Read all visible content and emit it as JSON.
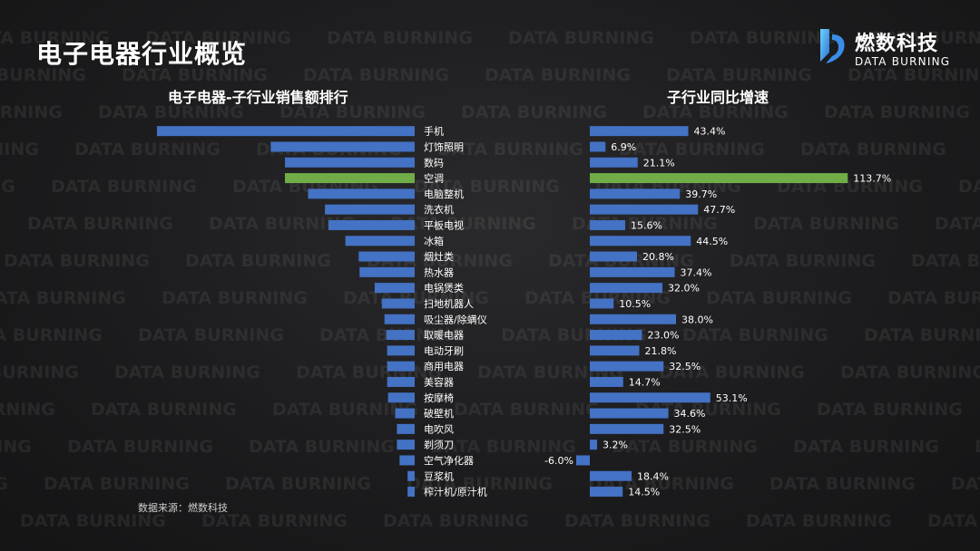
{
  "header": {
    "title": "电子电器行业概览"
  },
  "logo": {
    "name_cn": "燃数科技",
    "name_en": "DATA BURNING"
  },
  "watermark": "DATA BURNING",
  "left_chart": {
    "subtitle": "电子电器-子行业销售额排行"
  },
  "right_chart": {
    "subtitle": "子行业同比增速"
  },
  "footer": {
    "source": "数据来源：燃数科技"
  },
  "colors": {
    "bar": "#4472c4",
    "highlight": "#70ad47",
    "background": "#1c1c1e",
    "text": "#ffffff"
  },
  "chart_data": [
    {
      "type": "bar",
      "orientation": "horizontal",
      "title": "电子电器-子行业销售额排行",
      "categories": [
        "手机",
        "灯饰照明",
        "数码",
        "空调",
        "电脑整机",
        "洗衣机",
        "平板电视",
        "冰箱",
        "烟灶类",
        "热水器",
        "电锅煲类",
        "扫地机器人",
        "吸尘器/除螨仪",
        "取暖电器",
        "电动牙刷",
        "商用电器",
        "美容器",
        "按摩椅",
        "破壁机",
        "电吹风",
        "剃须刀",
        "空气净化器",
        "豆浆机",
        "榨汁机/原汁机"
      ],
      "values": [
        290,
        162,
        146,
        146,
        120,
        101,
        97,
        78,
        63,
        62,
        45,
        37,
        34,
        32,
        31,
        31,
        31,
        30,
        22,
        20,
        20,
        17,
        8,
        8
      ],
      "highlight_category": "空调",
      "axis_labels_shown": false,
      "grid": false
    },
    {
      "type": "bar",
      "orientation": "horizontal",
      "title": "子行业同比增速",
      "categories": [
        "手机",
        "灯饰照明",
        "数码",
        "空调",
        "电脑整机",
        "洗衣机",
        "平板电视",
        "冰箱",
        "烟灶类",
        "热水器",
        "电锅煲类",
        "扫地机器人",
        "吸尘器/除螨仪",
        "取暖电器",
        "电动牙刷",
        "商用电器",
        "美容器",
        "按摩椅",
        "破壁机",
        "电吹风",
        "剃须刀",
        "空气净化器",
        "豆浆机",
        "榨汁机/原汁机"
      ],
      "values": [
        43.4,
        6.9,
        21.1,
        113.7,
        39.7,
        47.7,
        15.6,
        44.5,
        20.8,
        37.4,
        32.0,
        10.5,
        38.0,
        23.0,
        21.8,
        32.5,
        14.7,
        53.1,
        34.6,
        32.5,
        3.2,
        -6.0,
        18.4,
        14.5
      ],
      "data_labels": [
        "43.4%",
        "6.9%",
        "21.1%",
        "113.7%",
        "39.7%",
        "47.7%",
        "15.6%",
        "44.5%",
        "20.8%",
        "37.4%",
        "32.0%",
        "10.5%",
        "38.0%",
        "23.0%",
        "21.8%",
        "32.5%",
        "14.7%",
        "53.1%",
        "34.6%",
        "32.5%",
        "3.2%",
        "-6.0%",
        "18.4%",
        "14.5%"
      ],
      "unit": "%",
      "highlight_category": "空调",
      "axis_labels_shown": false,
      "grid": false
    }
  ]
}
